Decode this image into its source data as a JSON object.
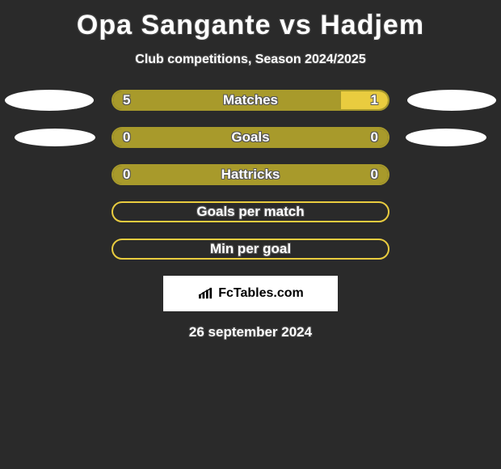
{
  "title": "Opa Sangante vs Hadjem",
  "subtitle": "Club competitions, Season 2024/2025",
  "date": "26 september 2024",
  "logo_text": "FcTables.com",
  "colors": {
    "left_player": "#a89a2b",
    "right_player": "#e9cc3f",
    "border_olive": "#a89a2b",
    "ellipse": "#ffffff",
    "background": "#2a2a2a"
  },
  "stats": [
    {
      "label": "Matches",
      "left_value": "5",
      "right_value": "1",
      "left_pct": 83,
      "right_pct": 17,
      "show_left_ellipse": true,
      "show_right_ellipse": true,
      "ellipse_size": "large",
      "left_color": "#a89a2b",
      "right_color": "#e9cc3f",
      "border_color": "#a89a2b"
    },
    {
      "label": "Goals",
      "left_value": "0",
      "right_value": "0",
      "left_pct": 100,
      "right_pct": 0,
      "show_left_ellipse": true,
      "show_right_ellipse": true,
      "ellipse_size": "small",
      "left_color": "#a89a2b",
      "right_color": "#e9cc3f",
      "border_color": "#a89a2b"
    },
    {
      "label": "Hattricks",
      "left_value": "0",
      "right_value": "0",
      "left_pct": 100,
      "right_pct": 0,
      "show_left_ellipse": false,
      "show_right_ellipse": false,
      "ellipse_size": "none",
      "left_color": "#a89a2b",
      "right_color": "#e9cc3f",
      "border_color": "#a89a2b"
    },
    {
      "label": "Goals per match",
      "left_value": "",
      "right_value": "",
      "left_pct": 0,
      "right_pct": 0,
      "show_left_ellipse": false,
      "show_right_ellipse": false,
      "ellipse_size": "none",
      "left_color": "#a89a2b",
      "right_color": "#e9cc3f",
      "border_color": "#e9cc3f"
    },
    {
      "label": "Min per goal",
      "left_value": "",
      "right_value": "",
      "left_pct": 0,
      "right_pct": 0,
      "show_left_ellipse": false,
      "show_right_ellipse": false,
      "ellipse_size": "none",
      "left_color": "#a89a2b",
      "right_color": "#e9cc3f",
      "border_color": "#e9cc3f"
    }
  ]
}
